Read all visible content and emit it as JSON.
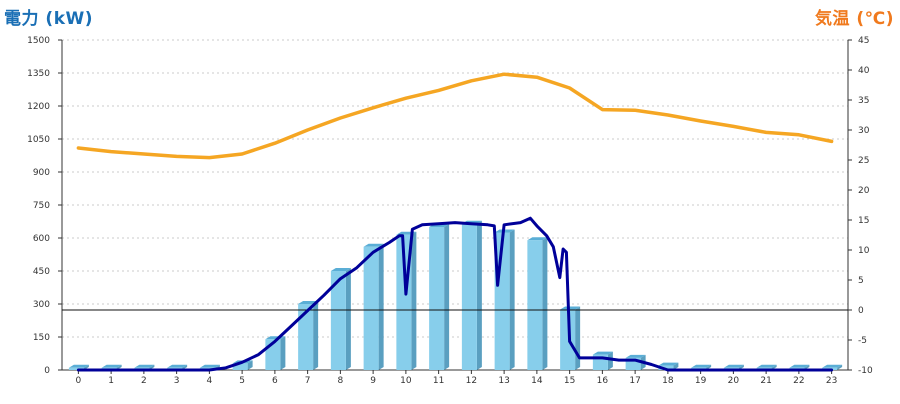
{
  "chart_data": {
    "type": "bar",
    "title_left": "電力 (kW)",
    "title_right": "気温 (℃)",
    "categories": [
      "0",
      "1",
      "2",
      "3",
      "4",
      "5",
      "6",
      "7",
      "8",
      "9",
      "10",
      "11",
      "12",
      "13",
      "14",
      "15",
      "16",
      "17",
      "18",
      "19",
      "20",
      "21",
      "22",
      "23"
    ],
    "y_left": {
      "min": 0,
      "max": 1500,
      "ticks": [
        0,
        150,
        300,
        450,
        600,
        750,
        900,
        1050,
        1200,
        1350,
        1500
      ]
    },
    "y_right": {
      "min": -10,
      "max": 45,
      "ticks": [
        -10,
        -5,
        0,
        5,
        10,
        15,
        20,
        25,
        30,
        35,
        40,
        45
      ]
    },
    "reference_line": {
      "axis": "right",
      "value": 0
    },
    "grid": true,
    "series": [
      {
        "kind": "bar",
        "axis": "left",
        "color": "#87ceeb",
        "values": [
          10,
          10,
          10,
          10,
          10,
          30,
          140,
          300,
          450,
          560,
          615,
          650,
          665,
          625,
          590,
          275,
          70,
          55,
          20,
          10,
          10,
          10,
          10,
          10
        ]
      },
      {
        "kind": "line",
        "axis": "left",
        "color": "#000099",
        "x": [
          4.0,
          4.5,
          5.0,
          5.5,
          6.0,
          6.5,
          7.0,
          7.5,
          8.0,
          8.5,
          9.0,
          9.5,
          9.8,
          9.9,
          10.0,
          10.2,
          10.5,
          11.0,
          11.5,
          12.0,
          12.5,
          12.7,
          12.8,
          13.0,
          13.5,
          13.8,
          14.0,
          14.3,
          14.5,
          14.7,
          14.8,
          14.9,
          15.0,
          15.3,
          15.5,
          16.0,
          16.5,
          17.0,
          17.5,
          18.0,
          18.5,
          19.0,
          20.0,
          21.0,
          22.0,
          23.0
        ],
        "y": [
          0,
          10,
          35,
          70,
          130,
          200,
          270,
          340,
          415,
          465,
          535,
          580,
          610,
          610,
          345,
          640,
          660,
          665,
          670,
          665,
          660,
          655,
          385,
          660,
          670,
          690,
          655,
          610,
          560,
          420,
          550,
          535,
          130,
          55,
          55,
          55,
          45,
          45,
          25,
          0,
          0,
          0,
          0,
          0,
          0,
          0
        ]
      },
      {
        "kind": "line",
        "axis": "right",
        "color": "#f5a623",
        "x": [
          0,
          1,
          2,
          3,
          4,
          5,
          6,
          7,
          8,
          9,
          10,
          11,
          12,
          13,
          14,
          15,
          16,
          17,
          18,
          19,
          20,
          21,
          22,
          23
        ],
        "y": [
          27,
          26.4,
          26,
          25.6,
          25.4,
          26,
          27.8,
          30,
          32,
          33.7,
          35.3,
          36.6,
          38.2,
          39.3,
          38.8,
          37,
          33.4,
          33.3,
          32.5,
          31.5,
          30.6,
          29.6,
          29.2,
          28.1
        ]
      }
    ]
  }
}
